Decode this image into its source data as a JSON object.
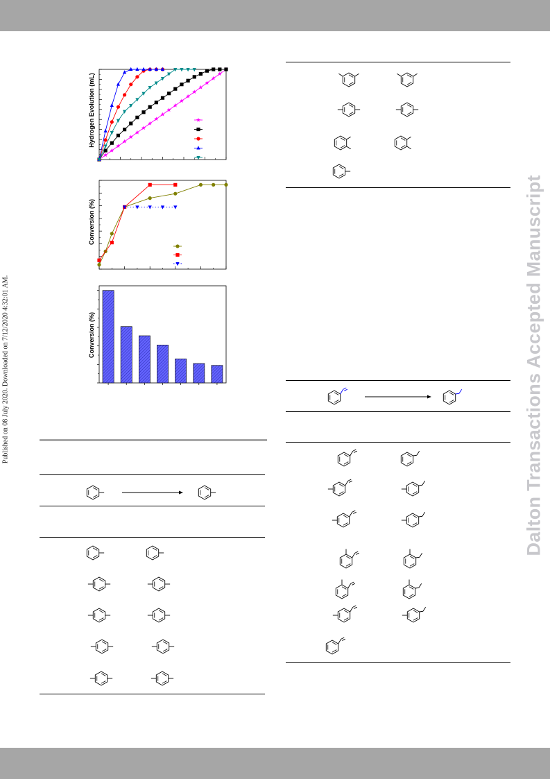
{
  "page": {
    "side_note": "Published on 08 July 2020. Downloaded on 7/12/2020 4:32:01 AM.",
    "watermark": "Dalton Transactions Accepted Manuscript",
    "band_color": "#a6a6a6"
  },
  "chart_data": [
    {
      "type": "line",
      "ylabel": "Hydrogen Evolution (mL)",
      "xlabel": "",
      "grid": false,
      "legend_position": "bottom-right",
      "series": [
        {
          "color": "#ff00ff",
          "marker": "star",
          "x": [
            0,
            1,
            2,
            3,
            4,
            5,
            6,
            7,
            8,
            9,
            10,
            11,
            12,
            13,
            14,
            15,
            16,
            17,
            18,
            19,
            20
          ],
          "y": [
            0,
            3,
            6,
            9,
            12,
            15,
            18,
            21,
            24,
            27,
            30,
            33,
            36,
            39,
            42,
            45,
            48,
            51,
            54,
            57,
            60
          ]
        },
        {
          "color": "#000000",
          "marker": "square",
          "x": [
            0,
            1,
            2,
            3,
            4,
            5,
            6,
            7,
            8,
            9,
            10,
            11,
            12,
            13,
            14,
            15,
            16,
            17,
            18,
            19,
            20
          ],
          "y": [
            0,
            6,
            11,
            16,
            20,
            24,
            28,
            31.5,
            35,
            38,
            41,
            44,
            47,
            50,
            52.5,
            55,
            57,
            59,
            60,
            60,
            60
          ]
        },
        {
          "color": "#ff0000",
          "marker": "circle",
          "x": [
            0,
            1,
            2,
            3,
            4,
            5,
            6,
            7,
            8,
            9,
            10
          ],
          "y": [
            0,
            13,
            25,
            35,
            43,
            50,
            55,
            59,
            60,
            60,
            60
          ]
        },
        {
          "color": "#0000ff",
          "marker": "triangle-up",
          "x": [
            0,
            1,
            2,
            3,
            4,
            5,
            6,
            7,
            8,
            9,
            10
          ],
          "y": [
            0,
            19,
            36,
            50,
            58,
            60,
            60,
            60,
            60,
            60,
            60
          ]
        },
        {
          "color": "#008b8b",
          "marker": "triangle-down",
          "x": [
            0,
            1,
            2,
            3,
            4,
            5,
            6,
            7,
            8,
            9,
            10,
            11,
            12,
            13,
            14,
            15
          ],
          "y": [
            0,
            9,
            18,
            26,
            32,
            36,
            40,
            44,
            48,
            51,
            54,
            57,
            60,
            60,
            60,
            60
          ]
        }
      ]
    },
    {
      "type": "line",
      "ylabel": "Conversion (%)",
      "xlabel": "",
      "grid": false,
      "legend_position": "bottom-right",
      "series": [
        {
          "color": "#808000",
          "line_style": "solid",
          "marker": "circle",
          "x": [
            0,
            5,
            10,
            20,
            40,
            60,
            80,
            90,
            100
          ],
          "y": [
            5,
            20,
            40,
            70,
            80,
            85,
            95,
            95,
            95
          ]
        },
        {
          "color": "#ff0000",
          "line_style": "solid",
          "marker": "square",
          "x": [
            0,
            10,
            20,
            40,
            60
          ],
          "y": [
            10,
            30,
            70,
            95,
            95
          ]
        },
        {
          "color": "#0000ff",
          "line_style": "dotted",
          "marker": "triangle-down",
          "x": [
            20,
            30,
            40,
            50,
            60
          ],
          "y": [
            70,
            70,
            70,
            70,
            70
          ]
        }
      ]
    },
    {
      "type": "bar",
      "ylabel": "Conversion (%)",
      "xlabel": "",
      "grid": false,
      "categories": [
        "",
        "",
        "",
        "",
        "",
        "",
        ""
      ],
      "values": [
        100,
        61,
        51,
        41,
        26,
        21,
        19
      ],
      "ylim": [
        0,
        100
      ],
      "bar_color": "#6464ff",
      "bar_pattern": "hatched"
    }
  ]
}
